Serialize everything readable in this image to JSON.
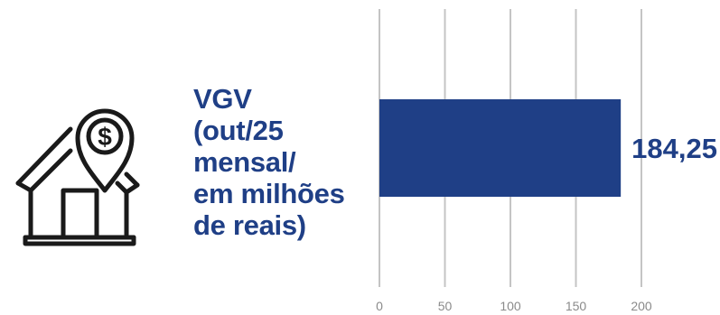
{
  "title_lines": [
    "VGV",
    "(out/25",
    "mensal/",
    "em milhões",
    "de reais)"
  ],
  "icon": "house-dollar-pin-icon",
  "colors": {
    "bar": "#1f3f86",
    "text": "#1f3f86",
    "grid": "#c4c4c4",
    "tick": "#8a8a8a"
  },
  "chart_data": {
    "type": "bar",
    "orientation": "horizontal",
    "title": "VGV (out/25 mensal/ em milhões de reais)",
    "categories": [
      ""
    ],
    "values": [
      184.25
    ],
    "value_labels": [
      "184,25"
    ],
    "xlim": [
      0,
      200
    ],
    "xticks": [
      0,
      50,
      100,
      150,
      200
    ],
    "grid": true,
    "legend": "none"
  }
}
